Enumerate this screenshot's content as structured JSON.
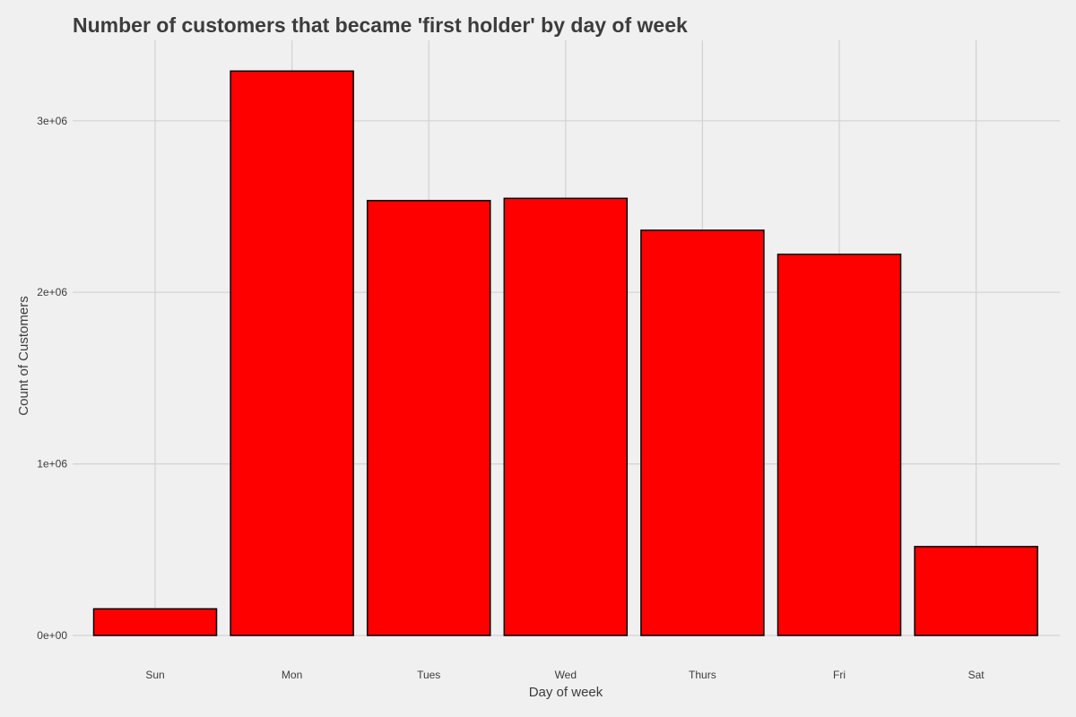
{
  "chart_data": {
    "type": "bar",
    "title": "Number of customers that became 'first holder' by day of week",
    "xlabel": "Day of week",
    "ylabel": "Count of Customers",
    "categories": [
      "Sun",
      "Mon",
      "Tues",
      "Wed",
      "Thurs",
      "Fri",
      "Sat"
    ],
    "values": [
      155000,
      3290000,
      2535000,
      2548000,
      2362000,
      2222000,
      518000
    ],
    "ylim": [
      0,
      3430000
    ],
    "yticks": [
      0,
      1000000,
      2000000,
      3000000
    ],
    "ytick_labels": [
      "0e+00",
      "1e+06",
      "2e+06",
      "3e+06"
    ],
    "grid": true,
    "legend": "none",
    "colors": {
      "bar_fill": "#ff0000",
      "bar_stroke": "#000000",
      "background": "#f0f0f0",
      "grid": "#d2d2d2",
      "text": "#3c3c3c"
    }
  }
}
